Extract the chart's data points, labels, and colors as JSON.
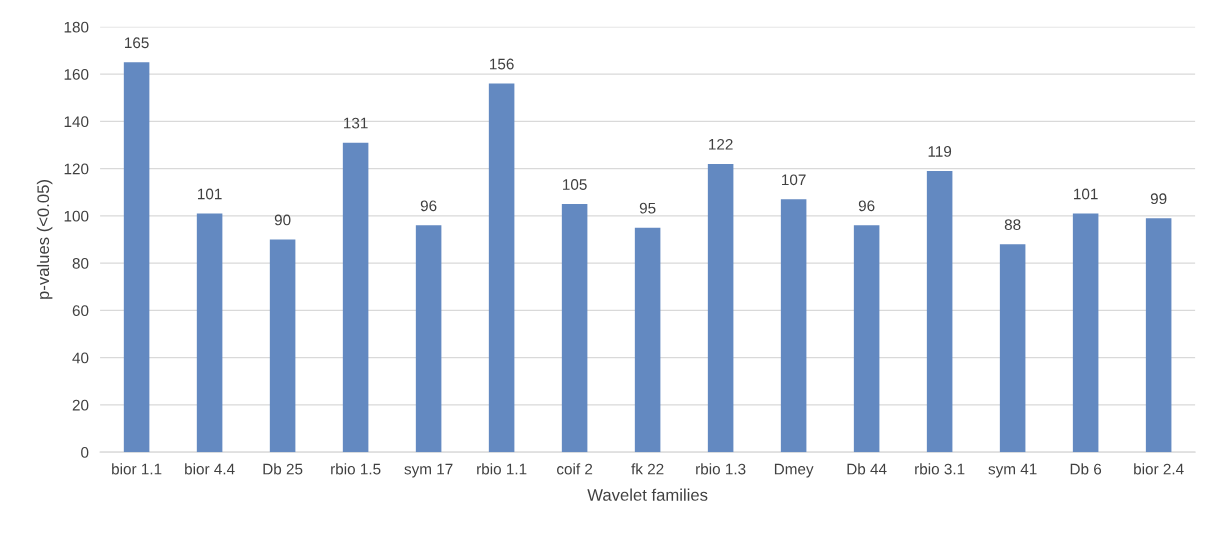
{
  "chart_data": {
    "type": "bar",
    "xlabel": "Wavelet families",
    "ylabel": "p-values (<0.05)",
    "categories": [
      "bior 1.1",
      "bior 4.4",
      "Db 25",
      "rbio 1.5",
      "sym 17",
      "rbio 1.1",
      "coif 2",
      "fk 22",
      "rbio 1.3",
      "Dmey",
      "Db 44",
      "rbio 3.1",
      "sym 41",
      "Db 6",
      "bior 2.4"
    ],
    "values": [
      165,
      101,
      90,
      131,
      96,
      156,
      105,
      95,
      122,
      107,
      96,
      119,
      88,
      101,
      99
    ],
    "color": "#6389c1",
    "ylim": [
      0,
      180
    ],
    "yticks": [
      0,
      20,
      40,
      60,
      80,
      100,
      120,
      140,
      160,
      180
    ],
    "grid": "y",
    "data_labels": true
  }
}
